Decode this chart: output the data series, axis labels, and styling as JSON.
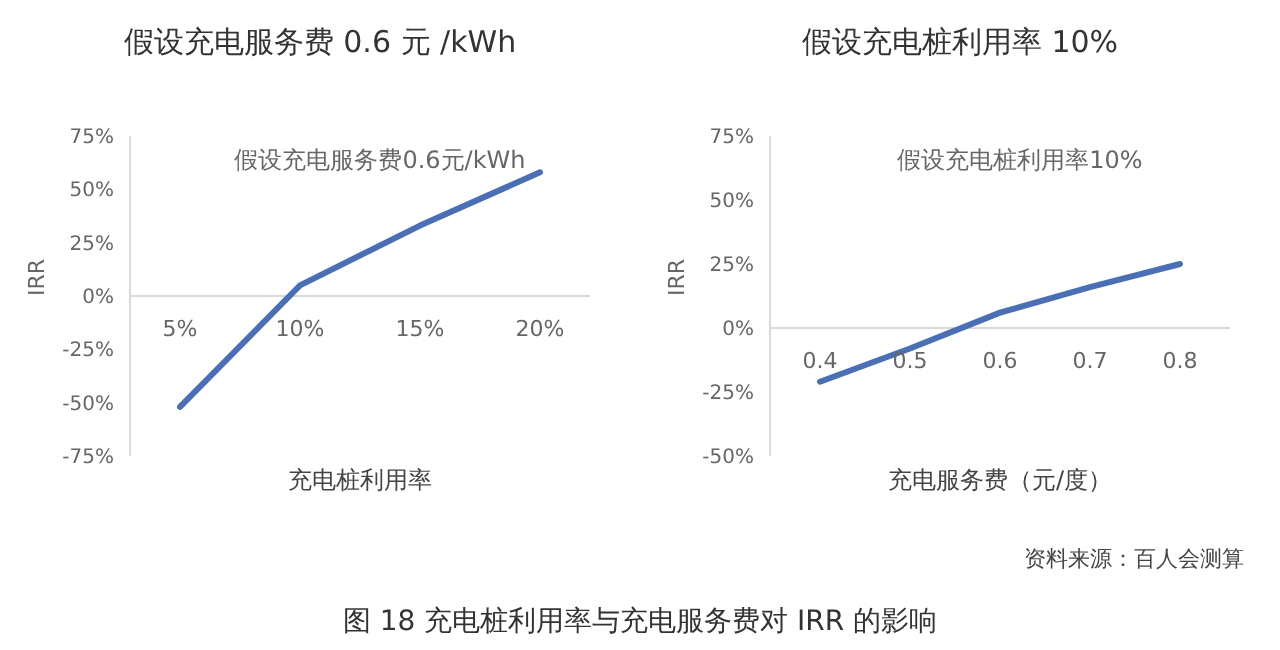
{
  "chart_data": [
    {
      "type": "line",
      "title": "假设充电服务费 0.6 元 /kWh",
      "xlabel": "充电桩利用率",
      "ylabel": "IRR",
      "annotations": [
        "假设充电服务费0.6元/kWh"
      ],
      "categories": [
        "5%",
        "10%",
        "15%",
        "20%"
      ],
      "values": [
        -52,
        5,
        33,
        58
      ],
      "color": "#4a6fb5",
      "ylim": [
        -75,
        75
      ],
      "yticks": [
        {
          "value": -75,
          "label": "-75%"
        },
        {
          "value": -50,
          "label": "-50%"
        },
        {
          "value": -25,
          "label": "-25%"
        },
        {
          "value": 0,
          "label": "0%"
        },
        {
          "value": 25,
          "label": "25%"
        },
        {
          "value": 50,
          "label": "50%"
        },
        {
          "value": 75,
          "label": "75%"
        }
      ]
    },
    {
      "type": "line",
      "title": "假设充电桩利用率 10%",
      "xlabel": "充电服务费（元/度）",
      "ylabel": "IRR",
      "annotations": [
        "假设充电桩利用率10%",
        "资料来源：百人会测算",
        "图 18   充电桩利用率与充电服务费对 IRR 的影响"
      ],
      "categories": [
        "0.4",
        "0.5",
        "0.6",
        "0.7",
        "0.8"
      ],
      "values": [
        -21,
        -8,
        6,
        16,
        25
      ],
      "color": "#4a6fb5",
      "ylim": [
        -50,
        75
      ],
      "yticks": [
        {
          "value": -50,
          "label": "-50%"
        },
        {
          "value": -25,
          "label": "-25%"
        },
        {
          "value": 0,
          "label": "0%"
        },
        {
          "value": 25,
          "label": "25%"
        },
        {
          "value": 50,
          "label": "50%"
        },
        {
          "value": 75,
          "label": "75%"
        }
      ]
    }
  ]
}
